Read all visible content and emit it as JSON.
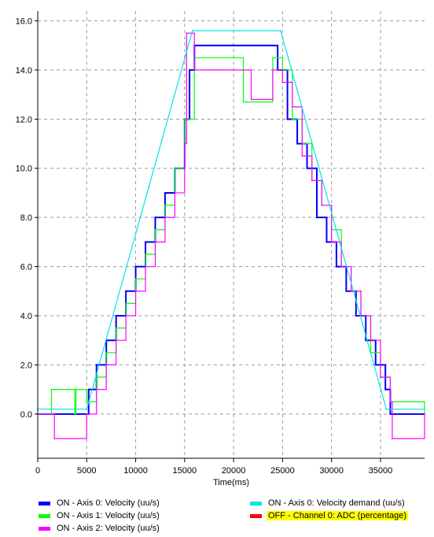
{
  "chart_data": {
    "type": "line",
    "title": "",
    "xlabel": "Time(ms)",
    "ylabel": "",
    "xlim": [
      0,
      39500
    ],
    "ylim": [
      -1.8,
      16.4
    ],
    "xticks": [
      0,
      5000,
      10000,
      15000,
      20000,
      25000,
      30000,
      35000
    ],
    "xtick_labels": [
      "0",
      "5000",
      "10000",
      "15000",
      "20000",
      "25000",
      "30000",
      "35000"
    ],
    "yticks": [
      0,
      2,
      4,
      6,
      8,
      10,
      12,
      14,
      16
    ],
    "ytick_labels": [
      "0.0",
      "2.0",
      "4.0",
      "6.0",
      "8.0",
      "10.0",
      "12.0",
      "14.0",
      "16.0"
    ],
    "grid": true,
    "legend_position": "bottom",
    "series": [
      {
        "name": "ON  - Axis 0: Velocity (uu/s)",
        "color": "#0000ff",
        "x": [
          0,
          5000,
          5200,
          6000,
          7000,
          8000,
          9000,
          10000,
          11000,
          12000,
          13000,
          14000,
          15000,
          15500,
          16000,
          20000,
          24000,
          24500,
          25500,
          26500,
          27500,
          28500,
          29500,
          30500,
          31500,
          32500,
          33500,
          34500,
          35500,
          36000,
          39500
        ],
        "y": [
          0.0,
          0.0,
          1.0,
          2.0,
          3.0,
          4.0,
          5.0,
          6.0,
          7.0,
          8.0,
          9.0,
          10.0,
          12.0,
          14.0,
          15.0,
          15.0,
          15.0,
          14.0,
          12.0,
          11.0,
          10.0,
          8.0,
          7.0,
          6.0,
          5.0,
          4.0,
          3.0,
          2.0,
          1.0,
          0.0,
          0.0
        ]
      },
      {
        "name": "ON  - Axis 1: Velocity (uu/s)",
        "color": "#00ff00",
        "x": [
          0,
          1300,
          1400,
          3800,
          3900,
          5000,
          6000,
          7000,
          8000,
          9000,
          10000,
          11000,
          12000,
          13000,
          14000,
          15000,
          16000,
          20000,
          21000,
          24000,
          25000,
          26000,
          27000,
          28000,
          29000,
          30000,
          31000,
          32000,
          33000,
          34000,
          35000,
          36000,
          39500
        ],
        "y": [
          0.0,
          0.0,
          1.0,
          0.0,
          1.0,
          0.5,
          1.5,
          2.5,
          3.5,
          4.5,
          5.5,
          6.5,
          7.5,
          8.5,
          10.0,
          12.0,
          14.5,
          14.5,
          12.7,
          14.5,
          14.0,
          12.0,
          11.0,
          9.5,
          8.5,
          7.5,
          6.0,
          5.0,
          4.0,
          2.5,
          1.5,
          0.5,
          0.0
        ]
      },
      {
        "name": "ON  - Axis 2: Velocity (uu/s)",
        "color": "#ff00ff",
        "x": [
          0,
          1600,
          1700,
          5000,
          6000,
          7000,
          8000,
          9000,
          10000,
          11000,
          12000,
          13000,
          14000,
          15000,
          15200,
          16000,
          20000,
          21800,
          24000,
          25000,
          26000,
          27000,
          28000,
          29000,
          30000,
          31000,
          32000,
          33000,
          34000,
          35000,
          36000,
          36200,
          39500
        ],
        "y": [
          0.0,
          0.0,
          -1.0,
          0.0,
          1.0,
          2.0,
          3.0,
          4.0,
          5.0,
          6.0,
          7.0,
          8.0,
          9.0,
          11.0,
          15.5,
          14.0,
          14.0,
          12.8,
          14.0,
          13.5,
          12.5,
          10.5,
          9.5,
          8.5,
          7.0,
          6.0,
          5.0,
          4.0,
          3.0,
          1.5,
          0.5,
          -1.0,
          0.0
        ]
      },
      {
        "name": "ON  - Axis 0: Velocity demand (uu/s)",
        "color": "#00e5e5",
        "x": [
          0,
          5000,
          15800,
          24800,
          35600,
          39500
        ],
        "y": [
          0.2,
          0.2,
          15.6,
          15.6,
          0.2,
          0.2
        ]
      }
    ],
    "inactive_series": [
      {
        "name": "OFF - Channel 0: ADC (percentage)",
        "color": "#ff0000"
      }
    ]
  },
  "legend": [
    {
      "text": "ON  - Axis 0: Velocity (uu/s)",
      "color": "#0000ff",
      "highlight": ""
    },
    {
      "text": "ON  - Axis 0: Velocity demand (uu/s)",
      "color": "#00e5e5",
      "highlight": ""
    },
    {
      "text": "ON  - Axis 1: Velocity (uu/s)",
      "color": "#00ff00",
      "highlight": ""
    },
    {
      "text": "OFF - Channel 0: ADC (percentage)",
      "color": "#ff0000",
      "highlight": "#ffff00"
    },
    {
      "text": "ON  - Axis 2: Velocity (uu/s)",
      "color": "#ff00ff",
      "highlight": ""
    }
  ]
}
